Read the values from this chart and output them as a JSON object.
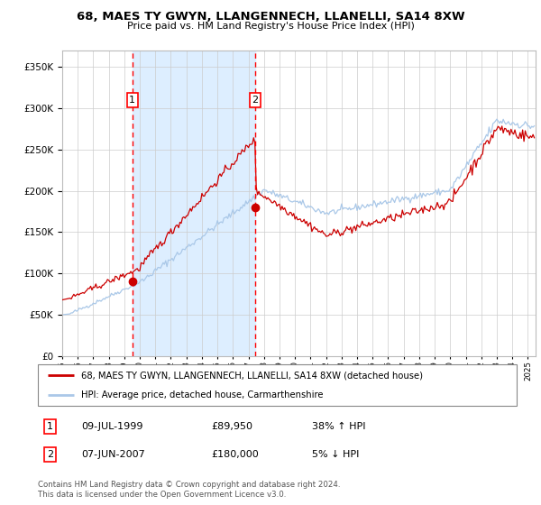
{
  "title": "68, MAES TY GWYN, LLANGENNECH, LLANELLI, SA14 8XW",
  "subtitle": "Price paid vs. HM Land Registry's House Price Index (HPI)",
  "legend_line1": "68, MAES TY GWYN, LLANGENNECH, LLANELLI, SA14 8XW (detached house)",
  "legend_line2": "HPI: Average price, detached house, Carmarthenshire",
  "annotation1_date": "09-JUL-1999",
  "annotation1_price": "£89,950",
  "annotation1_hpi": "38% ↑ HPI",
  "annotation2_date": "07-JUN-2007",
  "annotation2_price": "£180,000",
  "annotation2_hpi": "5% ↓ HPI",
  "footer": "Contains HM Land Registry data © Crown copyright and database right 2024.\nThis data is licensed under the Open Government Licence v3.0.",
  "sale1_x": 1999.52,
  "sale1_y": 89950,
  "sale2_x": 2007.43,
  "sale2_y": 180000,
  "hpi_color": "#aac8e8",
  "price_color": "#cc0000",
  "shade_color": "#ddeeff",
  "ylim": [
    0,
    370000
  ],
  "xlim_start": 1995.0,
  "xlim_end": 2025.5,
  "background_color": "#ffffff",
  "grid_color": "#cccccc"
}
